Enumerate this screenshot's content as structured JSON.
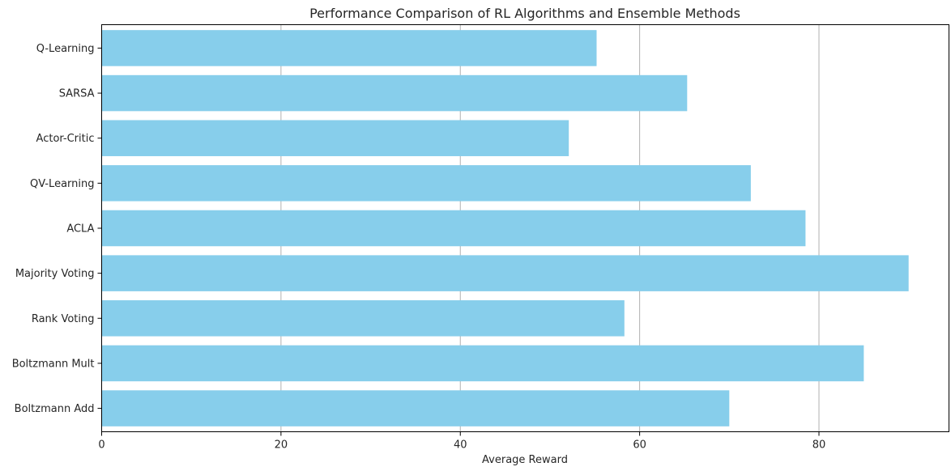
{
  "chart_data": {
    "type": "bar",
    "orientation": "horizontal",
    "title": "Performance Comparison of RL Algorithms and Ensemble Methods",
    "xlabel": "Average Reward",
    "ylabel": "",
    "categories": [
      "Q-Learning",
      "SARSA",
      "Actor-Critic",
      "QV-Learning",
      "ACLA",
      "Majority Voting",
      "Rank Voting",
      "Boltzmann Mult",
      "Boltzmann Add"
    ],
    "values": [
      55.2,
      65.3,
      52.1,
      72.4,
      78.5,
      90.0,
      58.3,
      85.0,
      70.0
    ],
    "xlim": [
      0,
      94.5
    ],
    "xticks": [
      0,
      20,
      40,
      60,
      80
    ],
    "xtick_labels": [
      "0",
      "20",
      "40",
      "60",
      "80"
    ],
    "grid": "vertical",
    "bar_color": "#87ceeb"
  }
}
